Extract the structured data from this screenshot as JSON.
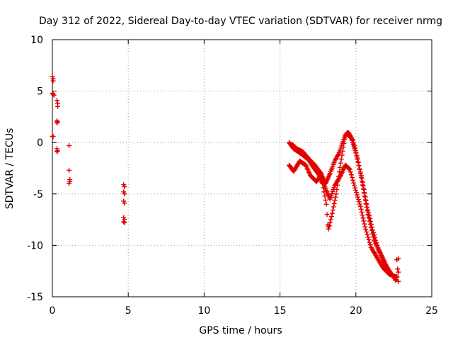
{
  "chart_data": {
    "type": "scatter",
    "title": "Day 312 of 2022, Sidereal Day-to-day VTEC variation (SDTVAR) for receiver nrmg",
    "xlabel": "GPS time / hours",
    "ylabel": "SDTVAR / TECUs",
    "xlim": [
      0,
      25
    ],
    "ylim": [
      -15,
      10
    ],
    "xticks": [
      0,
      5,
      10,
      15,
      20,
      25
    ],
    "yticks": [
      -15,
      -10,
      -5,
      0,
      5,
      10
    ],
    "grid": true,
    "marker": "+",
    "color": "#e00000",
    "series": [
      {
        "name": "SDTVAR",
        "points": [
          [
            0.0,
            6.4
          ],
          [
            0.05,
            6.2
          ],
          [
            0.05,
            6.0
          ],
          [
            0.0,
            4.8
          ],
          [
            0.05,
            4.7
          ],
          [
            0.1,
            4.6
          ],
          [
            0.0,
            0.6
          ],
          [
            0.05,
            0.6
          ],
          [
            0.3,
            4.1
          ],
          [
            0.35,
            3.8
          ],
          [
            0.35,
            3.5
          ],
          [
            0.3,
            2.1
          ],
          [
            0.35,
            2.0
          ],
          [
            0.3,
            1.9
          ],
          [
            0.3,
            -0.6
          ],
          [
            0.35,
            -0.8
          ],
          [
            0.3,
            -0.9
          ],
          [
            1.1,
            -0.3
          ],
          [
            1.1,
            -2.7
          ],
          [
            1.15,
            -3.6
          ],
          [
            1.15,
            -3.8
          ],
          [
            1.1,
            -4.0
          ],
          [
            4.7,
            -4.1
          ],
          [
            4.75,
            -4.3
          ],
          [
            4.7,
            -4.8
          ],
          [
            4.75,
            -5.0
          ],
          [
            4.7,
            -5.7
          ],
          [
            4.75,
            -5.9
          ],
          [
            4.7,
            -7.3
          ],
          [
            4.75,
            -7.5
          ],
          [
            4.7,
            -7.7
          ],
          [
            4.75,
            -7.8
          ],
          [
            22.7,
            -11.4
          ],
          [
            22.8,
            -11.3
          ],
          [
            22.75,
            -12.3
          ],
          [
            22.8,
            -12.6
          ],
          [
            22.7,
            -13.0
          ],
          [
            22.8,
            -13.5
          ],
          [
            22.6,
            -13.4
          ]
        ],
        "traces": [
          [
            [
              15.6,
              0.0
            ],
            [
              15.9,
              -0.6
            ],
            [
              16.4,
              -1.1
            ],
            [
              16.9,
              -1.7
            ],
            [
              17.2,
              -2.4
            ],
            [
              17.5,
              -3.0
            ],
            [
              17.8,
              -4.0
            ],
            [
              18.05,
              -6.0
            ],
            [
              18.15,
              -8.0
            ],
            [
              18.2,
              -8.4
            ],
            [
              18.4,
              -7.2
            ],
            [
              18.7,
              -5.0
            ],
            [
              19.0,
              -2.0
            ],
            [
              19.3,
              0.7
            ],
            [
              19.5,
              1.0
            ],
            [
              19.8,
              0.2
            ],
            [
              20.1,
              -1.5
            ],
            [
              20.5,
              -4.5
            ],
            [
              20.8,
              -7.0
            ],
            [
              21.2,
              -9.5
            ],
            [
              21.7,
              -11.0
            ],
            [
              22.1,
              -12.3
            ],
            [
              22.6,
              -13.3
            ]
          ],
          [
            [
              15.6,
              -2.2
            ],
            [
              15.9,
              -2.8
            ],
            [
              16.3,
              -1.8
            ],
            [
              16.7,
              -2.2
            ],
            [
              17.0,
              -3.2
            ],
            [
              17.4,
              -3.8
            ],
            [
              17.7,
              -3.2
            ],
            [
              18.0,
              -4.5
            ],
            [
              18.3,
              -5.5
            ],
            [
              18.6,
              -4.2
            ],
            [
              19.0,
              -3.2
            ],
            [
              19.3,
              -2.2
            ],
            [
              19.6,
              -2.6
            ],
            [
              19.9,
              -4.2
            ],
            [
              20.3,
              -6.2
            ],
            [
              20.6,
              -8.2
            ],
            [
              21.0,
              -10.2
            ],
            [
              21.4,
              -11.2
            ],
            [
              21.8,
              -12.2
            ],
            [
              22.2,
              -12.8
            ],
            [
              22.7,
              -13.1
            ]
          ],
          [
            [
              15.8,
              -0.2
            ],
            [
              16.1,
              -0.6
            ],
            [
              16.5,
              -0.9
            ],
            [
              16.9,
              -1.6
            ],
            [
              17.3,
              -2.2
            ],
            [
              17.7,
              -3.0
            ],
            [
              18.0,
              -4.0
            ],
            [
              18.3,
              -3.0
            ],
            [
              18.6,
              -1.8
            ],
            [
              18.9,
              -1.0
            ],
            [
              19.2,
              0.3
            ],
            [
              19.4,
              0.9
            ],
            [
              19.7,
              0.4
            ],
            [
              20.0,
              -1.0
            ],
            [
              20.4,
              -3.5
            ],
            [
              20.7,
              -6.0
            ],
            [
              21.1,
              -8.5
            ],
            [
              21.5,
              -10.5
            ],
            [
              21.9,
              -11.8
            ],
            [
              22.3,
              -12.7
            ]
          ]
        ]
      }
    ]
  }
}
